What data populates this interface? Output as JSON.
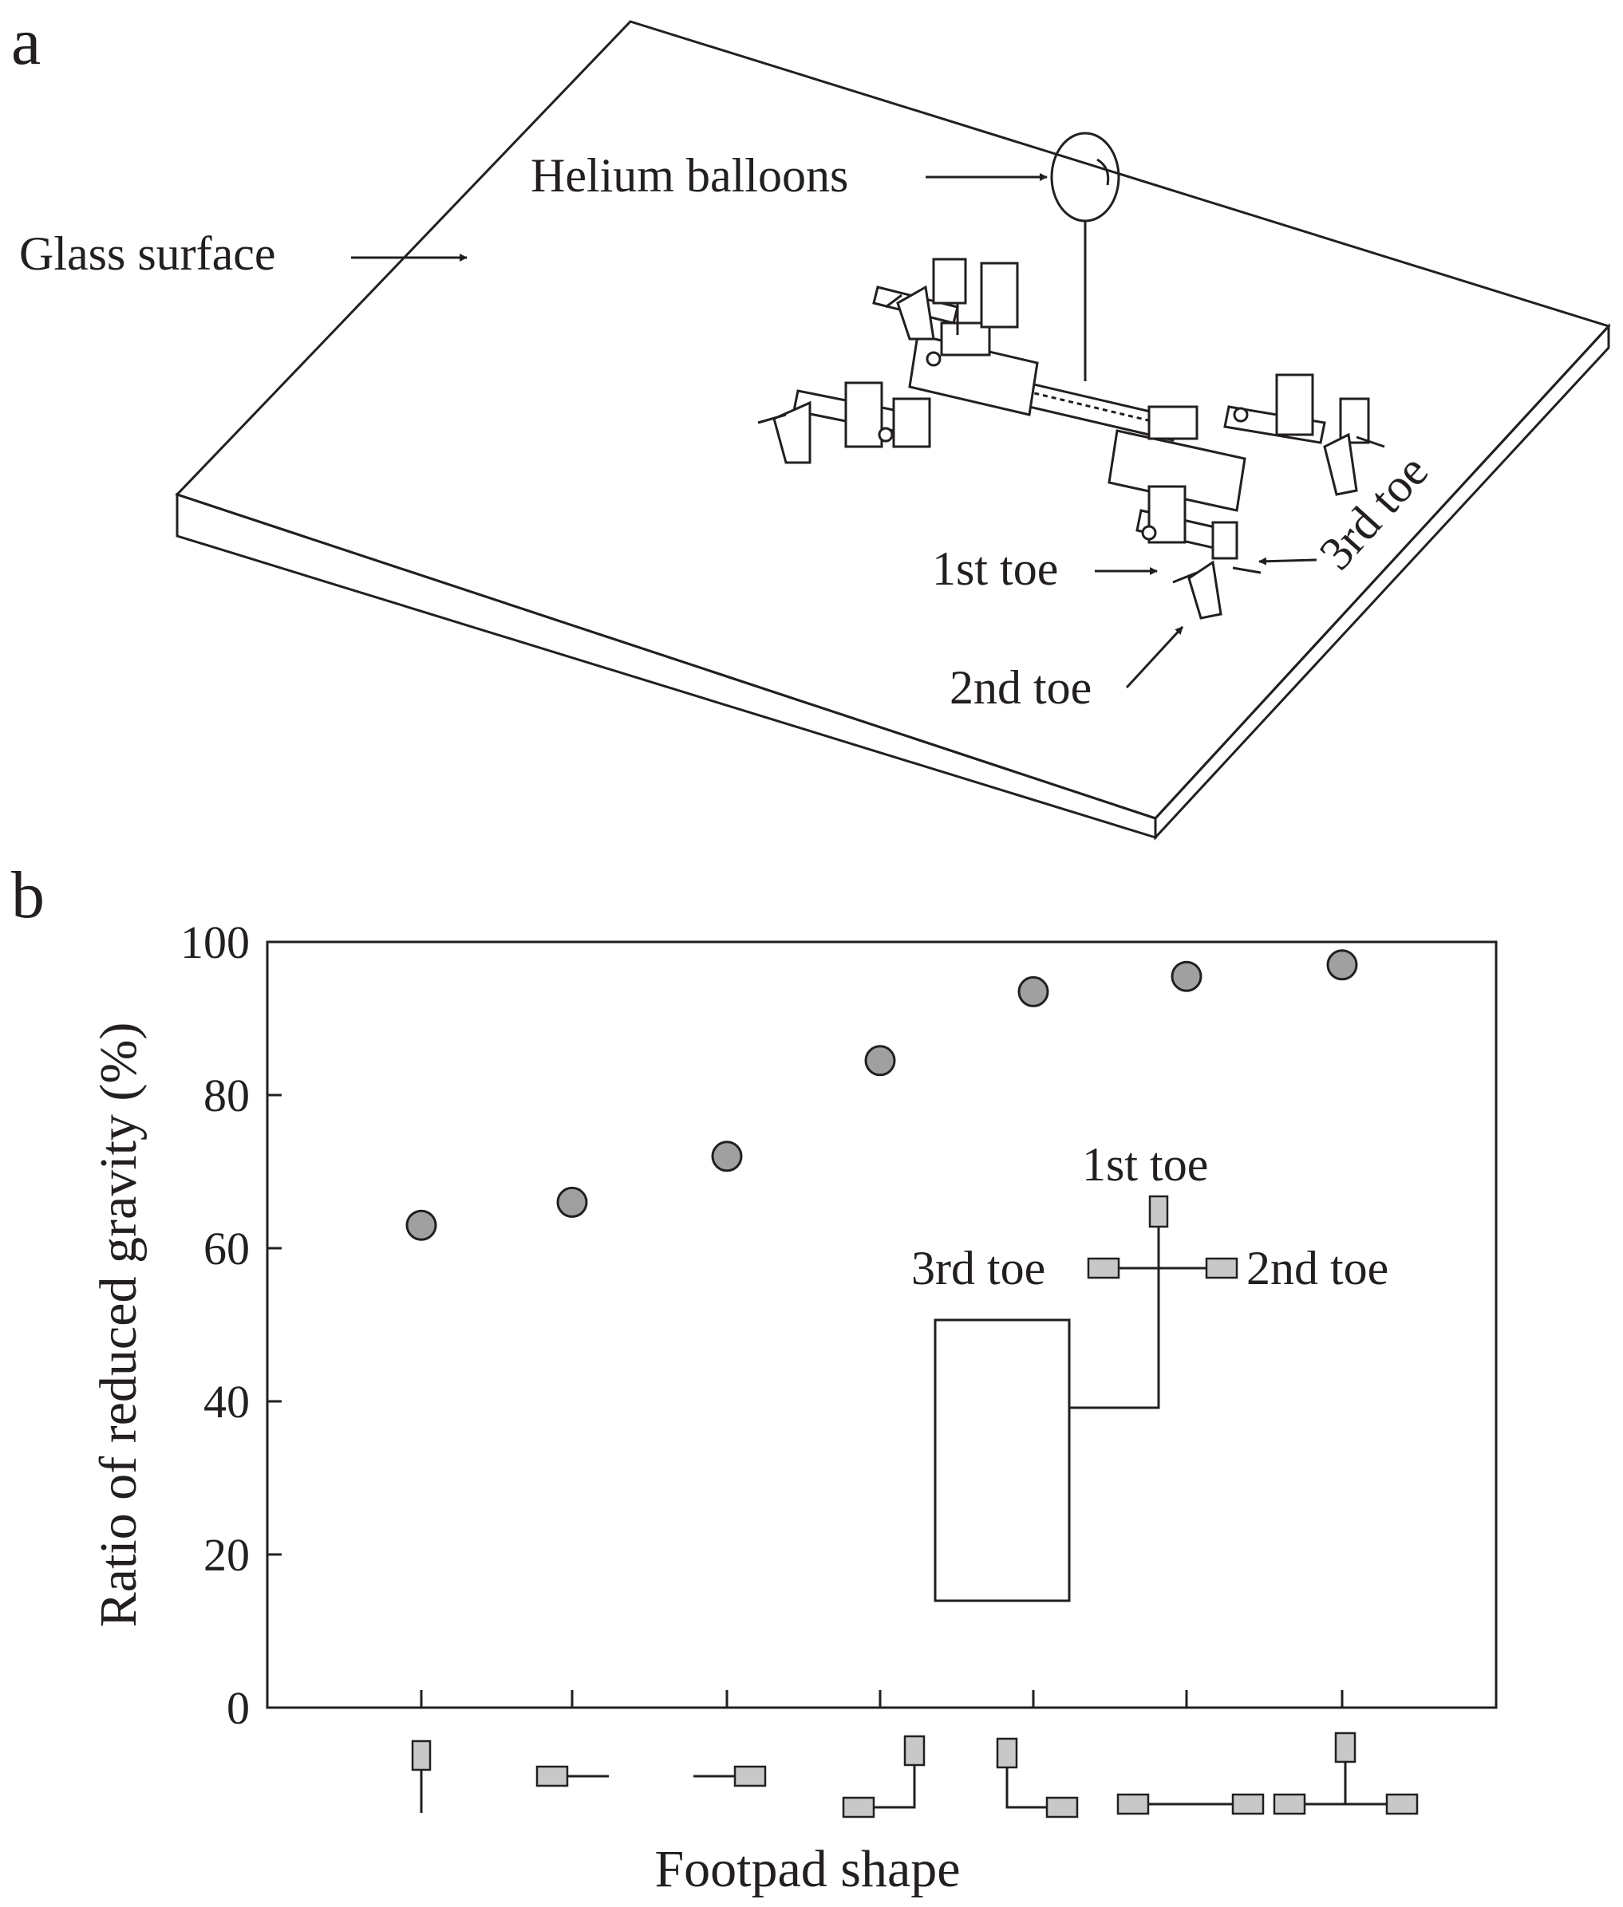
{
  "panel_a": {
    "letter": "a",
    "labels": {
      "helium": "Helium balloons",
      "glass": "Glass surface",
      "toe1": "1st toe",
      "toe2": "2nd toe",
      "toe3": "3rd toe"
    }
  },
  "panel_b": {
    "letter": "b",
    "inset": {
      "toe1": "1st toe",
      "toe2": "2nd toe",
      "toe3": "3rd toe"
    }
  },
  "chart_data": {
    "type": "scatter",
    "xlabel": "Footpad shape",
    "ylabel": "Ratio of reduced gravity (%)",
    "ylim": [
      0,
      100
    ],
    "yticks": [
      "0",
      "20",
      "40",
      "60",
      "80",
      "100"
    ],
    "categories": [
      "1st toe",
      "3rd toe",
      "2nd toe",
      "1st toe + 2nd toe",
      "1st toe + 3rd toe",
      "2nd toe + 3rd toe",
      "1st toe + 2nd toe + 3rd toe"
    ],
    "values": [
      63,
      66,
      72,
      84.5,
      93.5,
      95.5,
      97
    ],
    "marker_color": "#a0a0a0",
    "grid": false
  }
}
